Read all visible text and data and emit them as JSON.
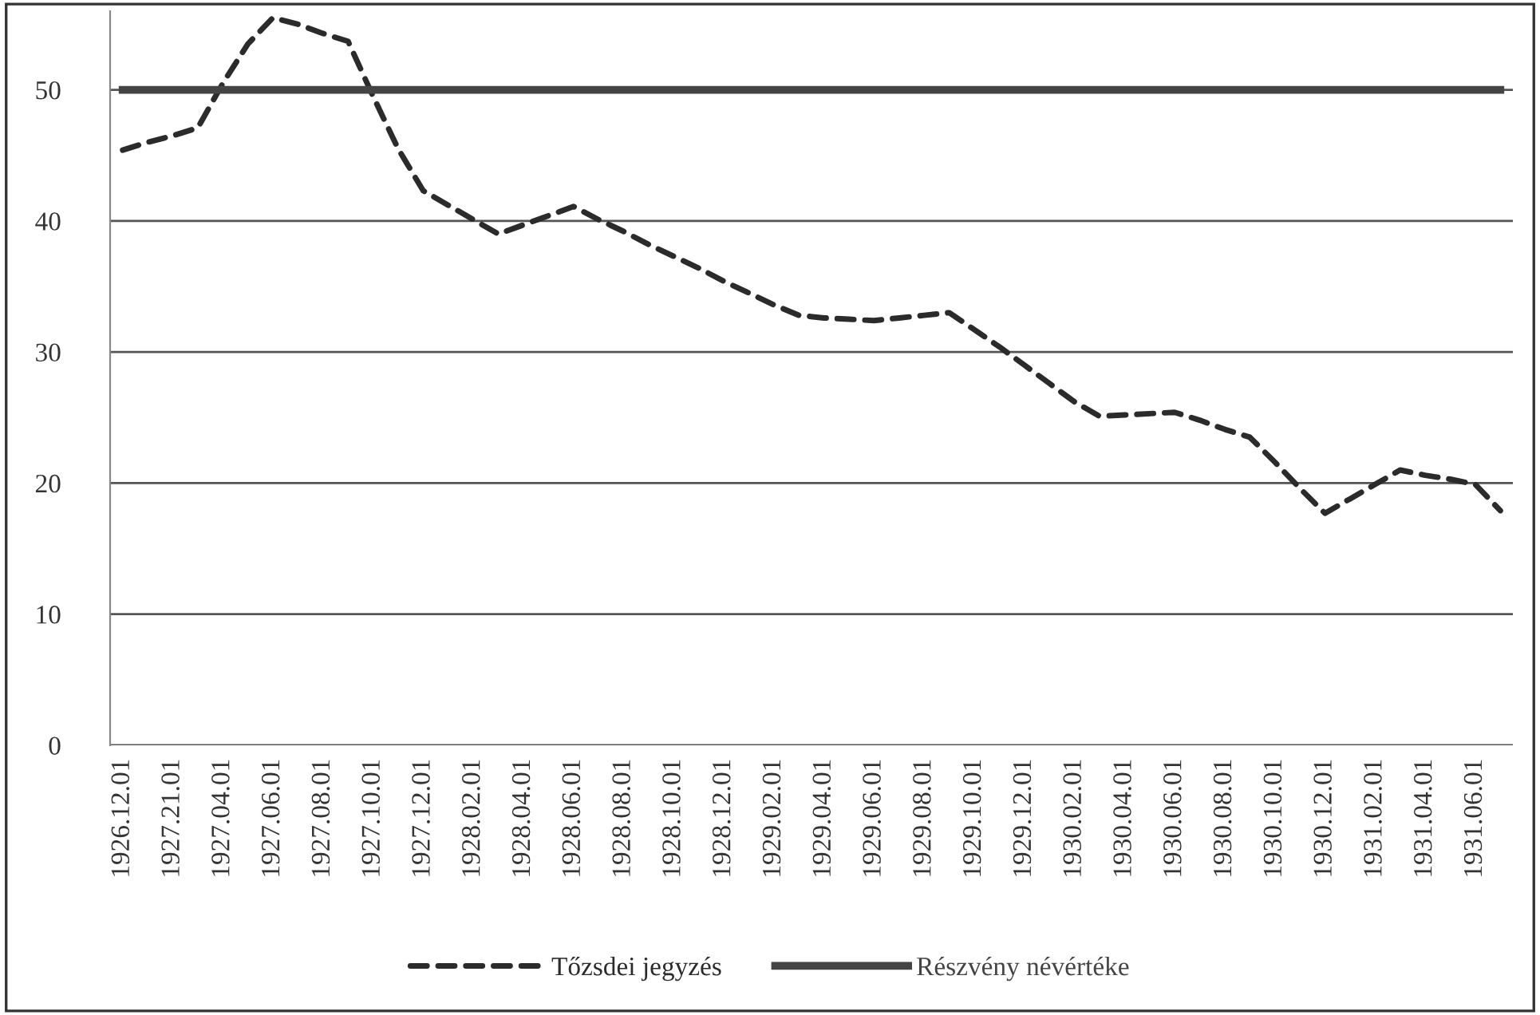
{
  "chart_data": {
    "type": "line",
    "categories": [
      "1926.12.01",
      null,
      "1927.21.01",
      null,
      "1927.04.01",
      null,
      "1927.06.01",
      null,
      "1927.08.01",
      null,
      "1927.10.01",
      null,
      "1927.12.01",
      null,
      "1928.02.01",
      null,
      "1928.04.01",
      null,
      "1928.06.01",
      null,
      "1928.08.01",
      null,
      "1928.10.01",
      null,
      "1928.12.01",
      null,
      "1929.02.01",
      null,
      "1929.04.01",
      null,
      "1929.06.01",
      null,
      "1929.08.01",
      null,
      "1929.10.01",
      null,
      "1929.12.01",
      null,
      "1930.02.01",
      null,
      "1930.04.01",
      null,
      "1930.06.01",
      null,
      "1930.08.01",
      null,
      "1930.10.01",
      null,
      "1930.12.01",
      null,
      "1931.02.01",
      null,
      "1931.04.01",
      null,
      "1931.06.01",
      null
    ],
    "series": [
      {
        "name": "Tőzsdei jegyzés",
        "color": "#2b2b2b",
        "line_style": "dashed",
        "values": [
          45.4,
          46,
          46.5,
          47.1,
          50.5,
          53.5,
          55.5,
          55,
          54.3,
          53.7,
          49.5,
          45.5,
          42.3,
          41.2,
          40.1,
          39,
          39.7,
          40.4,
          41.1,
          40.1,
          39.2,
          38.2,
          37.3,
          36.4,
          35.4,
          34.5,
          33.6,
          32.8,
          32.6,
          32.5,
          32.4,
          32.6,
          32.8,
          33,
          31.7,
          30.4,
          29,
          27.6,
          26.2,
          25.1,
          25.2,
          25.3,
          25.4,
          24.8,
          24.1,
          23.5,
          21.6,
          19.6,
          17.7,
          18.8,
          19.9,
          21,
          20.6,
          20.3,
          19.9,
          17.9
        ]
      },
      {
        "name": "Részvény névértéke",
        "color": "#444444",
        "line_style": "solid",
        "values": [
          50,
          50,
          50,
          50,
          50,
          50,
          50,
          50,
          50,
          50,
          50,
          50,
          50,
          50,
          50,
          50,
          50,
          50,
          50,
          50,
          50,
          50,
          50,
          50,
          50,
          50,
          50,
          50,
          50,
          50,
          50,
          50,
          50,
          50,
          50,
          50,
          50,
          50,
          50,
          50,
          50,
          50,
          50,
          50,
          50,
          50,
          50,
          50,
          50,
          50,
          50,
          50,
          50,
          50,
          50,
          50
        ]
      }
    ],
    "ylim": [
      0,
      56
    ],
    "yticks": [
      0,
      10,
      20,
      30,
      40,
      50
    ],
    "grid": "y",
    "legend": "bottom"
  }
}
